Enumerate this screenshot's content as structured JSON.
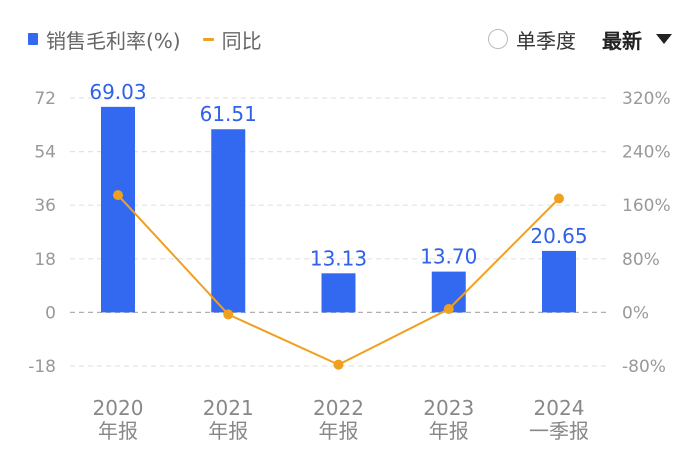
{
  "legend": {
    "bar_label": "销售毛利率(%)",
    "line_label": "同比"
  },
  "controls": {
    "single_quarter_label": "单季度",
    "latest_label": "最新"
  },
  "colors": {
    "bar": "#3369f0",
    "line": "#f0a020",
    "grid": "#e3e3e3",
    "zero_line": "#b0b0b0"
  },
  "chart_data": {
    "type": "bar",
    "categories": [
      [
        "2020",
        "年报"
      ],
      [
        "2021",
        "年报"
      ],
      [
        "2022",
        "年报"
      ],
      [
        "2023",
        "年报"
      ],
      [
        "2024",
        "一季报"
      ]
    ],
    "series": [
      {
        "name": "销售毛利率(%)",
        "type": "bar",
        "axis": "left",
        "values": [
          69.03,
          61.51,
          13.13,
          13.7,
          20.65
        ],
        "data_labels": [
          "69.03",
          "61.51",
          "13.13",
          "13.70",
          "20.65"
        ]
      },
      {
        "name": "同比",
        "type": "line",
        "axis": "right",
        "values": [
          175,
          -3,
          -78,
          5,
          170
        ]
      }
    ],
    "y_left": {
      "ticks": [
        72,
        54,
        36,
        18,
        0,
        -18
      ],
      "min": -18,
      "max": 72
    },
    "y_right": {
      "ticks": [
        "320%",
        "240%",
        "160%",
        "80%",
        "0%",
        "-80%"
      ],
      "min": -80,
      "max": 320
    },
    "grid": true
  }
}
